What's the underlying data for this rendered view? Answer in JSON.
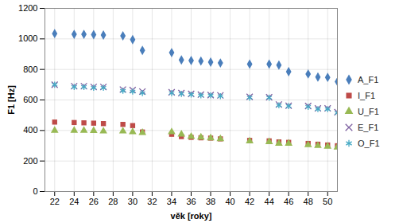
{
  "chart_data": {
    "type": "scatter",
    "xlabel": "věk [roky]",
    "ylabel": "F1 [Hz]",
    "x": [
      22,
      24,
      25,
      26,
      27,
      29,
      30,
      31,
      34,
      35,
      36,
      37,
      38,
      39,
      42,
      44,
      45,
      46,
      48,
      49,
      50,
      51
    ],
    "series": [
      {
        "name": "A_F1",
        "color": "#4a7ebb",
        "marker": "diamond",
        "values": [
          1035,
          1030,
          1030,
          1028,
          1025,
          1020,
          995,
          925,
          910,
          862,
          858,
          855,
          848,
          842,
          835,
          835,
          828,
          785,
          770,
          750,
          748,
          720
        ]
      },
      {
        "name": "I_F1",
        "color": "#be4b48",
        "marker": "square",
        "values": [
          455,
          452,
          450,
          448,
          445,
          440,
          432,
          390,
          375,
          360,
          355,
          352,
          350,
          345,
          335,
          332,
          325,
          322,
          315,
          310,
          305,
          300
        ]
      },
      {
        "name": "U_F1",
        "color": "#98b954",
        "marker": "triangle",
        "values": [
          400,
          400,
          400,
          398,
          395,
          395,
          390,
          385,
          390,
          375,
          360,
          355,
          350,
          345,
          330,
          325,
          315,
          315,
          305,
          300,
          295,
          290
        ]
      },
      {
        "name": "E_F1",
        "color": "#7d60a0",
        "marker": "times",
        "values": [
          700,
          690,
          690,
          685,
          685,
          668,
          665,
          655,
          650,
          645,
          640,
          635,
          632,
          630,
          620,
          618,
          570,
          562,
          560,
          545,
          545,
          520
        ]
      },
      {
        "name": "O_F1",
        "color": "#46aac5",
        "marker": "asterisk",
        "values": [
          700,
          685,
          685,
          680,
          680,
          660,
          655,
          645,
          645,
          640,
          635,
          630,
          630,
          625,
          615,
          615,
          565,
          560,
          555,
          540,
          540,
          515
        ]
      }
    ],
    "xlim": [
      21,
      51
    ],
    "xticks": [
      22,
      24,
      26,
      28,
      30,
      32,
      34,
      36,
      38,
      40,
      42,
      44,
      46,
      48,
      50
    ],
    "ylim": [
      0,
      1200
    ],
    "yticks": [
      0,
      200,
      400,
      600,
      800,
      1000,
      1200
    ],
    "grid": true,
    "legend": "right"
  }
}
